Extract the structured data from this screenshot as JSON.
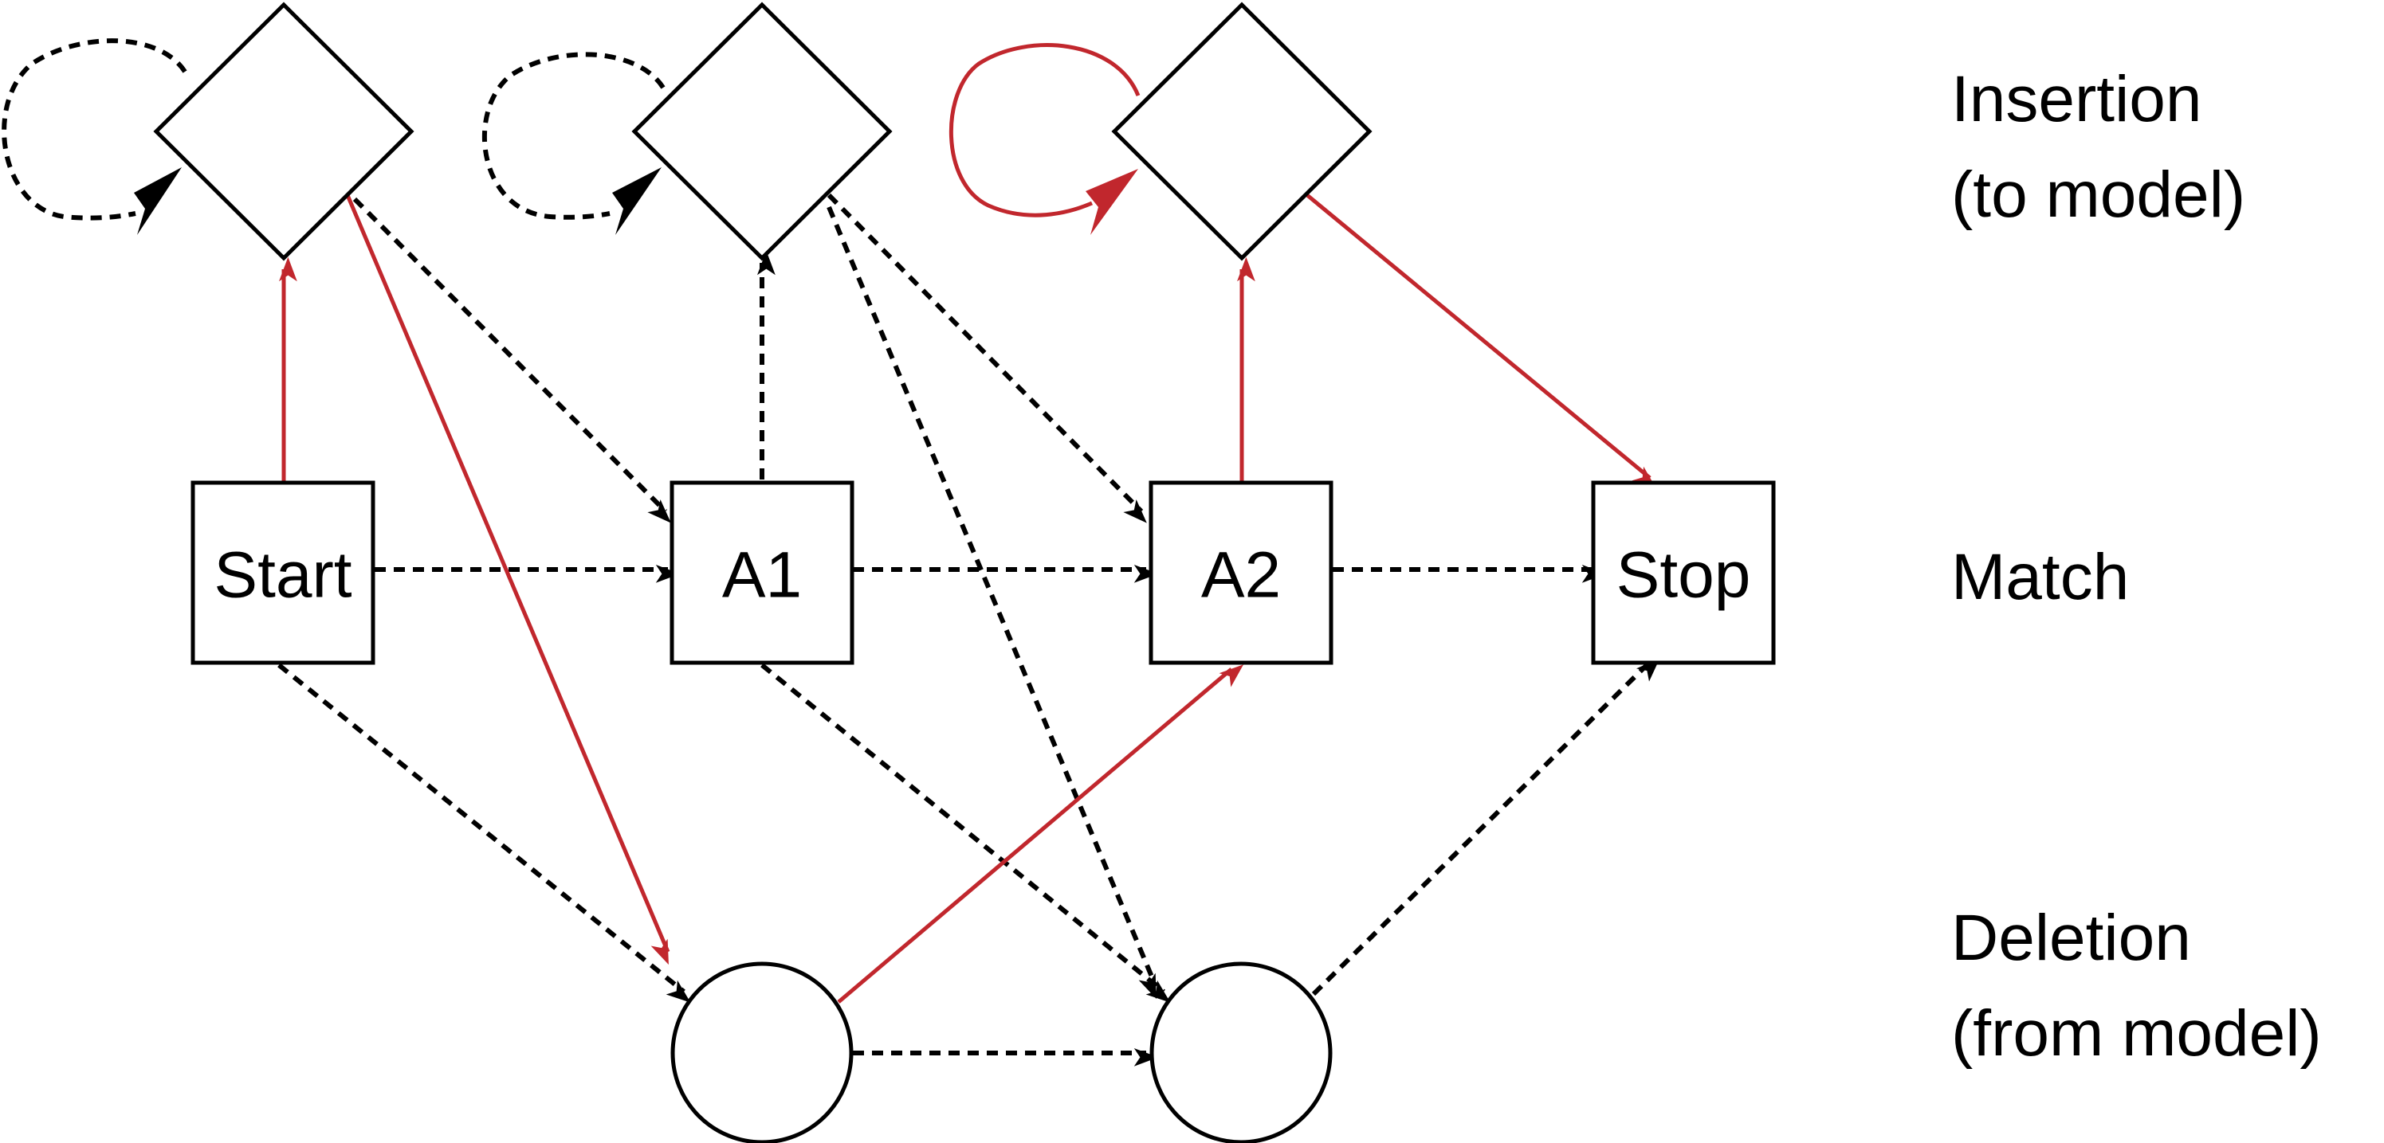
{
  "labels": {
    "start": "Start",
    "a1": "A1",
    "a2": "A2",
    "stop": "Stop"
  },
  "rows": {
    "insertion_line1": "Insertion",
    "insertion_line2": "(to model)",
    "match": "Match",
    "deletion_line1": "Deletion",
    "deletion_line2": "(from model)"
  },
  "colors": {
    "highlight_path": "#c1272d",
    "default_path": "#000000"
  }
}
